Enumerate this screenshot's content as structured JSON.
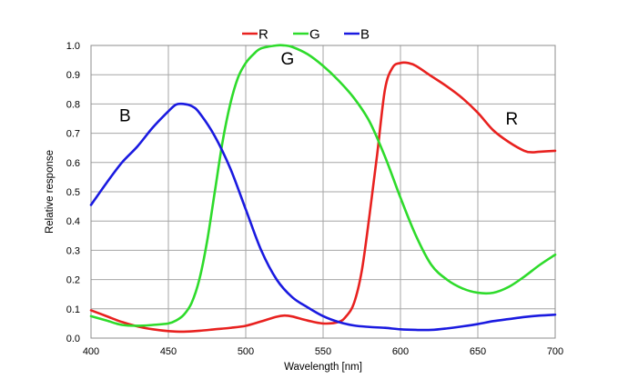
{
  "chart_data": {
    "type": "line",
    "xlabel": "Wavelength [nm]",
    "ylabel": "Relative response",
    "xlim": [
      400,
      700
    ],
    "ylim": [
      0,
      1.0
    ],
    "xticks": [
      400,
      450,
      500,
      550,
      600,
      650,
      700
    ],
    "yticks": [
      "0.0",
      "0.1",
      "0.2",
      "0.3",
      "0.4",
      "0.5",
      "0.6",
      "0.7",
      "0.8",
      "0.9",
      "1.0"
    ],
    "grid": true,
    "legend_position": "top-center",
    "series": [
      {
        "name": "R",
        "color": "#e8211f",
        "x": [
          400,
          410,
          420,
          430,
          440,
          450,
          460,
          470,
          480,
          490,
          500,
          510,
          520,
          525,
          530,
          540,
          550,
          560,
          565,
          570,
          575,
          580,
          585,
          590,
          595,
          600,
          605,
          610,
          620,
          630,
          640,
          650,
          660,
          670,
          680,
          685,
          690,
          700
        ],
        "y": [
          0.095,
          0.075,
          0.055,
          0.04,
          0.03,
          0.024,
          0.022,
          0.025,
          0.03,
          0.035,
          0.042,
          0.057,
          0.073,
          0.077,
          0.074,
          0.06,
          0.05,
          0.055,
          0.075,
          0.12,
          0.23,
          0.42,
          0.63,
          0.85,
          0.925,
          0.94,
          0.94,
          0.93,
          0.895,
          0.86,
          0.82,
          0.77,
          0.71,
          0.67,
          0.64,
          0.635,
          0.637,
          0.64
        ]
      },
      {
        "name": "G",
        "color": "#2edb2b",
        "x": [
          400,
          410,
          420,
          430,
          440,
          450,
          455,
          460,
          465,
          470,
          475,
          480,
          485,
          490,
          495,
          500,
          505,
          510,
          520,
          525,
          530,
          540,
          550,
          560,
          570,
          580,
          590,
          600,
          610,
          620,
          630,
          640,
          650,
          660,
          670,
          680,
          690,
          700
        ],
        "y": [
          0.075,
          0.06,
          0.045,
          0.042,
          0.045,
          0.05,
          0.06,
          0.08,
          0.12,
          0.2,
          0.33,
          0.5,
          0.67,
          0.8,
          0.89,
          0.94,
          0.97,
          0.99,
          1.0,
          1.0,
          0.995,
          0.97,
          0.93,
          0.88,
          0.82,
          0.74,
          0.62,
          0.48,
          0.35,
          0.25,
          0.2,
          0.17,
          0.155,
          0.155,
          0.175,
          0.21,
          0.25,
          0.285
        ]
      },
      {
        "name": "B",
        "color": "#1a1ae0",
        "x": [
          400,
          410,
          420,
          430,
          440,
          450,
          455,
          460,
          465,
          470,
          480,
          490,
          500,
          510,
          520,
          530,
          540,
          550,
          560,
          570,
          580,
          590,
          600,
          610,
          620,
          630,
          640,
          650,
          660,
          670,
          680,
          690,
          700
        ],
        "y": [
          0.455,
          0.53,
          0.6,
          0.655,
          0.72,
          0.775,
          0.798,
          0.8,
          0.793,
          0.77,
          0.69,
          0.58,
          0.44,
          0.3,
          0.2,
          0.14,
          0.105,
          0.075,
          0.055,
          0.043,
          0.038,
          0.035,
          0.03,
          0.028,
          0.028,
          0.033,
          0.04,
          0.048,
          0.058,
          0.065,
          0.072,
          0.077,
          0.08
        ]
      }
    ],
    "annotations": [
      {
        "text": "B",
        "x": 422,
        "y": 0.74
      },
      {
        "text": "G",
        "x": 527,
        "y": 0.935
      },
      {
        "text": "R",
        "x": 672,
        "y": 0.73
      }
    ]
  }
}
